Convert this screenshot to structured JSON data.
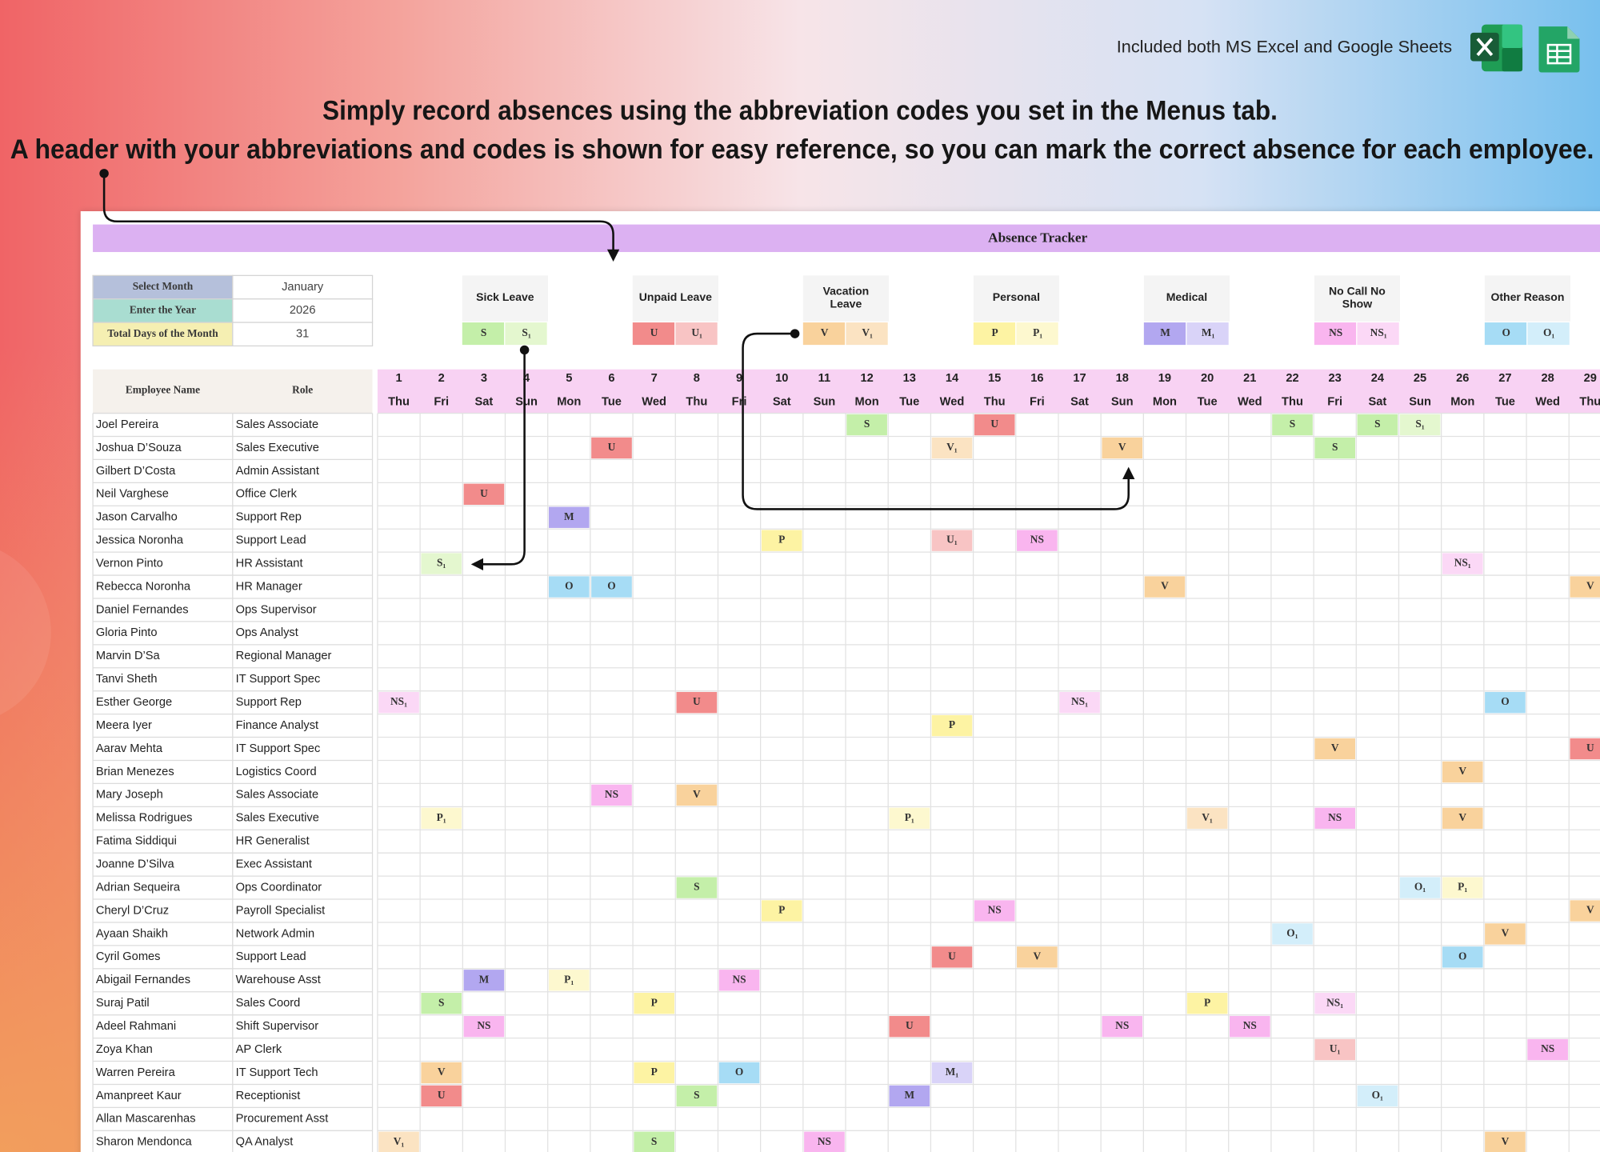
{
  "header": {
    "note": "Included both MS Excel and Google Sheets",
    "headline": [
      "Simply record absences using the abbreviation codes you set in the Menus tab.",
      "A header with your abbreviations and codes is shown for easy reference, so you can mark the correct absence for each employee."
    ]
  },
  "sheet": {
    "title": "Absence Tracker",
    "settings": [
      {
        "label": "Select Month",
        "value": "January",
        "color": "#b5c0db"
      },
      {
        "label": "Enter the Year",
        "value": "2026",
        "color": "#a9ddd1"
      },
      {
        "label": "Total Days of the Month",
        "value": "31",
        "color": "#f5efb2"
      }
    ],
    "legend": [
      {
        "name": [
          "Sick Leave"
        ],
        "codes": [
          "S",
          "S₁"
        ],
        "colors": [
          "#c4efa9",
          "#e4f7cf"
        ]
      },
      {
        "name": [
          "Unpaid Leave"
        ],
        "codes": [
          "U",
          "U₁"
        ],
        "colors": [
          "#f28b8b",
          "#f8c4c4"
        ]
      },
      {
        "name": [
          "Vacation",
          "Leave"
        ],
        "codes": [
          "V",
          "V₁"
        ],
        "colors": [
          "#f9d29c",
          "#fbe3c2"
        ]
      },
      {
        "name": [
          "Personal"
        ],
        "codes": [
          "P",
          "P₁"
        ],
        "colors": [
          "#fdf3a3",
          "#fdf8cf"
        ]
      },
      {
        "name": [
          "Medical"
        ],
        "codes": [
          "M",
          "M₁"
        ],
        "colors": [
          "#b2a7f0",
          "#d9d3f8"
        ]
      },
      {
        "name": [
          "No Call No",
          "Show"
        ],
        "codes": [
          "NS",
          "NS₁"
        ],
        "colors": [
          "#f9b5ef",
          "#fbd8f6"
        ]
      },
      {
        "name": [
          "Other Reason"
        ],
        "codes": [
          "O",
          "O₁"
        ],
        "colors": [
          "#a6dcf5",
          "#d3eefa"
        ]
      }
    ],
    "columns": [
      "Employee Name",
      "Role"
    ],
    "days": [
      {
        "day": 1,
        "dow": "Thu"
      },
      {
        "day": 2,
        "dow": "Fri"
      },
      {
        "day": 3,
        "dow": "Sat"
      },
      {
        "day": 4,
        "dow": "Sun"
      },
      {
        "day": 5,
        "dow": "Mon"
      },
      {
        "day": 6,
        "dow": "Tue"
      },
      {
        "day": 7,
        "dow": "Wed"
      },
      {
        "day": 8,
        "dow": "Thu"
      },
      {
        "day": 9,
        "dow": "Fri"
      },
      {
        "day": 10,
        "dow": "Sat"
      },
      {
        "day": 11,
        "dow": "Sun"
      },
      {
        "day": 12,
        "dow": "Mon"
      },
      {
        "day": 13,
        "dow": "Tue"
      },
      {
        "day": 14,
        "dow": "Wed"
      },
      {
        "day": 15,
        "dow": "Thu"
      },
      {
        "day": 16,
        "dow": "Fri"
      },
      {
        "day": 17,
        "dow": "Sat"
      },
      {
        "day": 18,
        "dow": "Sun"
      },
      {
        "day": 19,
        "dow": "Mon"
      },
      {
        "day": 20,
        "dow": "Tue"
      },
      {
        "day": 21,
        "dow": "Wed"
      },
      {
        "day": 22,
        "dow": "Thu"
      },
      {
        "day": 23,
        "dow": "Fri"
      },
      {
        "day": 24,
        "dow": "Sat"
      },
      {
        "day": 25,
        "dow": "Sun"
      },
      {
        "day": 26,
        "dow": "Mon"
      },
      {
        "day": 27,
        "dow": "Tue"
      },
      {
        "day": 28,
        "dow": "Wed"
      },
      {
        "day": 29,
        "dow": "Thu"
      }
    ],
    "employees": [
      {
        "name": "Joel Pereira",
        "role": "Sales Associate",
        "absences": [
          {
            "day": 12,
            "code": "S"
          },
          {
            "day": 15,
            "code": "U"
          },
          {
            "day": 22,
            "code": "S"
          },
          {
            "day": 24,
            "code": "S"
          },
          {
            "day": 25,
            "code": "S₁"
          }
        ]
      },
      {
        "name": "Joshua D’Souza",
        "role": "Sales Executive",
        "absences": [
          {
            "day": 6,
            "code": "U"
          },
          {
            "day": 14,
            "code": "V₁"
          },
          {
            "day": 18,
            "code": "V"
          },
          {
            "day": 23,
            "code": "S"
          }
        ]
      },
      {
        "name": "Gilbert D’Costa",
        "role": "Admin Assistant",
        "absences": []
      },
      {
        "name": "Neil Varghese",
        "role": "Office Clerk",
        "absences": [
          {
            "day": 3,
            "code": "U"
          }
        ]
      },
      {
        "name": "Jason Carvalho",
        "role": "Support Rep",
        "absences": [
          {
            "day": 5,
            "code": "M"
          }
        ]
      },
      {
        "name": "Jessica Noronha",
        "role": "Support Lead",
        "absences": [
          {
            "day": 10,
            "code": "P"
          },
          {
            "day": 14,
            "code": "U₁"
          },
          {
            "day": 16,
            "code": "NS"
          }
        ]
      },
      {
        "name": "Vernon Pinto",
        "role": "HR Assistant",
        "absences": [
          {
            "day": 2,
            "code": "S₁"
          },
          {
            "day": 26,
            "code": "NS₁"
          }
        ]
      },
      {
        "name": "Rebecca Noronha",
        "role": "HR Manager",
        "absences": [
          {
            "day": 5,
            "code": "O"
          },
          {
            "day": 6,
            "code": "O"
          },
          {
            "day": 19,
            "code": "V"
          },
          {
            "day": 29,
            "code": "V"
          }
        ]
      },
      {
        "name": "Daniel Fernandes",
        "role": "Ops Supervisor",
        "absences": []
      },
      {
        "name": "Gloria Pinto",
        "role": "Ops Analyst",
        "absences": []
      },
      {
        "name": "Marvin D’Sa",
        "role": "Regional Manager",
        "absences": []
      },
      {
        "name": "Tanvi Sheth",
        "role": "IT Support Spec",
        "absences": []
      },
      {
        "name": "Esther George",
        "role": "Support Rep",
        "absences": [
          {
            "day": 1,
            "code": "NS₁"
          },
          {
            "day": 8,
            "code": "U"
          },
          {
            "day": 17,
            "code": "NS₁"
          },
          {
            "day": 27,
            "code": "O"
          }
        ]
      },
      {
        "name": "Meera Iyer",
        "role": "Finance Analyst",
        "absences": [
          {
            "day": 14,
            "code": "P"
          }
        ]
      },
      {
        "name": "Aarav Mehta",
        "role": "IT Support Spec",
        "absences": [
          {
            "day": 23,
            "code": "V"
          },
          {
            "day": 29,
            "code": "U"
          }
        ]
      },
      {
        "name": "Brian Menezes",
        "role": "Logistics Coord",
        "absences": [
          {
            "day": 26,
            "code": "V"
          }
        ]
      },
      {
        "name": "Mary Joseph",
        "role": "Sales Associate",
        "absences": [
          {
            "day": 6,
            "code": "NS"
          },
          {
            "day": 8,
            "code": "V"
          }
        ]
      },
      {
        "name": "Melissa Rodrigues",
        "role": "Sales Executive",
        "absences": [
          {
            "day": 2,
            "code": "P₁"
          },
          {
            "day": 13,
            "code": "P₁"
          },
          {
            "day": 20,
            "code": "V₁"
          },
          {
            "day": 23,
            "code": "NS"
          },
          {
            "day": 26,
            "code": "V"
          }
        ]
      },
      {
        "name": "Fatima Siddiqui",
        "role": "HR Generalist",
        "absences": []
      },
      {
        "name": "Joanne D’Silva",
        "role": "Exec Assistant",
        "absences": []
      },
      {
        "name": "Adrian Sequeira",
        "role": "Ops Coordinator",
        "absences": [
          {
            "day": 8,
            "code": "S"
          },
          {
            "day": 25,
            "code": "O₁"
          },
          {
            "day": 26,
            "code": "P₁"
          }
        ]
      },
      {
        "name": "Cheryl D’Cruz",
        "role": "Payroll Specialist",
        "absences": [
          {
            "day": 10,
            "code": "P"
          },
          {
            "day": 15,
            "code": "NS"
          },
          {
            "day": 29,
            "code": "V"
          }
        ]
      },
      {
        "name": "Ayaan Shaikh",
        "role": "Network Admin",
        "absences": [
          {
            "day": 22,
            "code": "O₁"
          },
          {
            "day": 27,
            "code": "V"
          }
        ]
      },
      {
        "name": "Cyril Gomes",
        "role": "Support Lead",
        "absences": [
          {
            "day": 14,
            "code": "U"
          },
          {
            "day": 16,
            "code": "V"
          },
          {
            "day": 26,
            "code": "O"
          }
        ]
      },
      {
        "name": "Abigail Fernandes",
        "role": "Warehouse Asst",
        "absences": [
          {
            "day": 3,
            "code": "M"
          },
          {
            "day": 5,
            "code": "P₁"
          },
          {
            "day": 9,
            "code": "NS"
          }
        ]
      },
      {
        "name": "Suraj Patil",
        "role": "Sales Coord",
        "absences": [
          {
            "day": 2,
            "code": "S"
          },
          {
            "day": 7,
            "code": "P"
          },
          {
            "day": 20,
            "code": "P"
          },
          {
            "day": 23,
            "code": "NS₁"
          }
        ]
      },
      {
        "name": "Adeel Rahmani",
        "role": "Shift Supervisor",
        "absences": [
          {
            "day": 3,
            "code": "NS"
          },
          {
            "day": 13,
            "code": "U"
          },
          {
            "day": 18,
            "code": "NS"
          },
          {
            "day": 21,
            "code": "NS"
          }
        ]
      },
      {
        "name": "Zoya Khan",
        "role": "AP Clerk",
        "absences": [
          {
            "day": 23,
            "code": "U₁"
          },
          {
            "day": 28,
            "code": "NS"
          }
        ]
      },
      {
        "name": "Warren Pereira",
        "role": "IT Support Tech",
        "absences": [
          {
            "day": 2,
            "code": "V"
          },
          {
            "day": 7,
            "code": "P"
          },
          {
            "day": 9,
            "code": "O"
          },
          {
            "day": 14,
            "code": "M₁"
          }
        ]
      },
      {
        "name": "Amanpreet Kaur",
        "role": "Receptionist",
        "absences": [
          {
            "day": 2,
            "code": "U"
          },
          {
            "day": 8,
            "code": "S"
          },
          {
            "day": 13,
            "code": "M"
          },
          {
            "day": 24,
            "code": "O₁"
          }
        ]
      },
      {
        "name": "Allan Mascarenhas",
        "role": "Procurement Asst",
        "absences": []
      },
      {
        "name": "Sharon Mendonca",
        "role": "QA Analyst",
        "absences": [
          {
            "day": 1,
            "code": "V₁"
          },
          {
            "day": 7,
            "code": "S"
          },
          {
            "day": 11,
            "code": "NS"
          },
          {
            "day": 27,
            "code": "V"
          }
        ]
      }
    ]
  }
}
